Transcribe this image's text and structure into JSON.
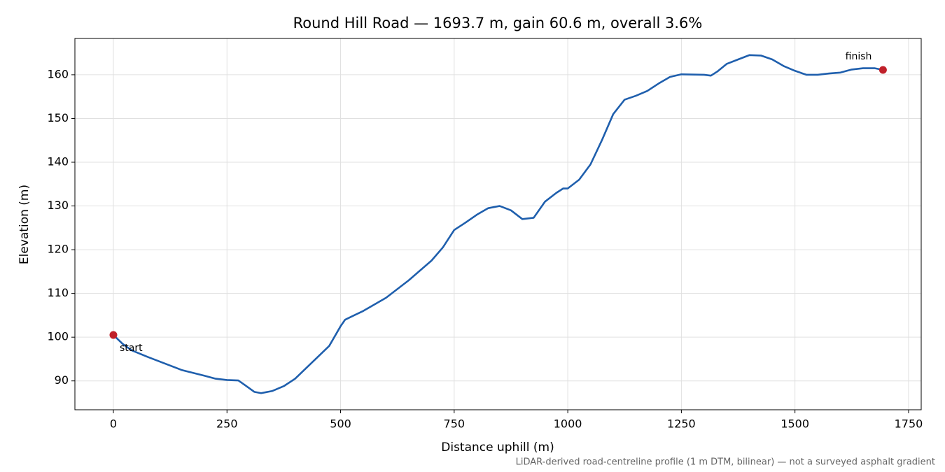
{
  "chart_data": {
    "type": "line",
    "title": "Round Hill Road — 1693.7 m, gain 60.6 m, overall 3.6%",
    "xlabel": "Distance uphill (m)",
    "ylabel": "Elevation (m)",
    "footnote": "LiDAR-derived road-centreline profile (1 m DTM, bilinear) — not a surveyed asphalt gradient",
    "x": [
      0,
      20,
      40,
      75,
      100,
      150,
      200,
      225,
      250,
      275,
      290,
      310,
      325,
      350,
      375,
      400,
      425,
      450,
      475,
      500,
      510,
      550,
      600,
      650,
      700,
      725,
      750,
      775,
      800,
      825,
      850,
      875,
      900,
      925,
      950,
      975,
      990,
      1000,
      1025,
      1050,
      1075,
      1100,
      1125,
      1150,
      1175,
      1200,
      1225,
      1250,
      1300,
      1315,
      1330,
      1350,
      1375,
      1400,
      1425,
      1450,
      1475,
      1500,
      1525,
      1550,
      1575,
      1600,
      1625,
      1650,
      1675,
      1693.7
    ],
    "values": [
      100.5,
      98.5,
      97,
      95.5,
      94.5,
      92.5,
      91.2,
      90.5,
      90.2,
      90.1,
      89,
      87.5,
      87.2,
      87.7,
      88.8,
      90.5,
      93,
      95.5,
      98,
      102.5,
      104,
      106,
      109,
      113,
      117.5,
      120.5,
      124.5,
      126.2,
      128,
      129.5,
      130,
      129,
      127,
      127.3,
      131,
      133,
      134,
      134,
      136,
      139.5,
      145,
      151,
      154.3,
      155.2,
      156.3,
      158,
      159.5,
      160.1,
      160,
      159.8,
      160.8,
      162.5,
      163.5,
      164.5,
      164.4,
      163.5,
      162,
      160.9,
      160,
      160,
      160.3,
      160.5,
      161.2,
      161.5,
      161.5,
      161.1
    ],
    "line_color": "#1f5fad",
    "marker_color": "#c0202a",
    "markers": [
      {
        "label": "start",
        "x": 0,
        "y": 100.5
      },
      {
        "label": "finish",
        "x": 1693.7,
        "y": 161.1
      }
    ],
    "xlim": [
      -84.7,
      1777.8
    ],
    "ylim": [
      83.4,
      168.3
    ],
    "xticks": [
      0,
      250,
      500,
      750,
      1000,
      1250,
      1500,
      1750
    ],
    "yticks": [
      90,
      100,
      110,
      120,
      130,
      140,
      150,
      160
    ],
    "grid": true
  }
}
